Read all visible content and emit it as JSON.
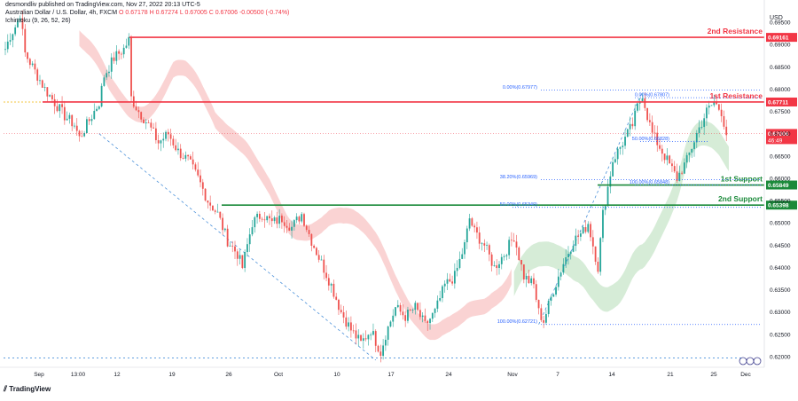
{
  "header": {
    "published": "desmondliv published on TradingView.com, Nov 27, 2022 20:13 UTC-5",
    "symbol": "Australian Dollar / U.S. Dollar, 4h, FXCM",
    "ohlc": "O 0.67178  H 0.67274  L 0.67005  C 0.67006  -0.00500 (-0.74%)",
    "indicator": "Ichimoku (9, 26, 52, 26)"
  },
  "currency": "USD",
  "footer": "TradingView",
  "colors": {
    "up": "#26a69a",
    "down": "#ef5350",
    "resistance": "#f23645",
    "support": "#1b8a3a",
    "fib": "#2962ff",
    "cloud_bear": "#f8c4c4",
    "cloud_bull": "#c8e6c9",
    "price_label": "#f23645"
  },
  "chart_data": {
    "type": "candlestick",
    "title": "Australian Dollar / U.S. Dollar, 4h, FXCM",
    "ylabel": "USD",
    "ylim": [
      0.618,
      0.698
    ],
    "y_ticks": [
      "0.69500",
      "0.69000",
      "0.68500",
      "0.68000",
      "0.67500",
      "0.67000",
      "0.66500",
      "0.66000",
      "0.65500",
      "0.65000",
      "0.64500",
      "0.64000",
      "0.63500",
      "0.63000",
      "0.62500",
      "0.62000"
    ],
    "x_ticks": [
      "Sep",
      "13:00",
      "12",
      "19",
      "26",
      "Oct",
      "10",
      "17",
      "24",
      "Nov",
      "7",
      "14",
      "21",
      "25",
      "Dec"
    ],
    "grid": false,
    "levels": [
      {
        "label": "2nd Resistance",
        "value": 0.69161,
        "price_label": "0.69161"
      },
      {
        "label": "1st Resistance",
        "value": 0.67711,
        "price_label": "0.67711"
      },
      {
        "label": "1st Support",
        "value": 0.65849,
        "price_label": "0.65849"
      },
      {
        "label": "2nd Support",
        "value": 0.65398,
        "price_label": "0.65398"
      }
    ],
    "current_price": {
      "value": 0.67006,
      "label": "0.67006",
      "countdown": "46:49"
    },
    "fib_levels": [
      {
        "label": "0.00%(0.67977)",
        "value": 0.67977
      },
      {
        "label": "38.20%(0.65969)",
        "value": 0.65969
      },
      {
        "label": "50.00%(0.65349)",
        "value": 0.65349
      },
      {
        "label": "100.00%(0.62721)",
        "value": 0.62721
      },
      {
        "label": "0.00%(0.67807)",
        "value": 0.67807
      },
      {
        "label": "50.00%(0.66828)",
        "value": 0.66828
      },
      {
        "label": "100.00%(0.65848)",
        "value": 0.65848
      }
    ],
    "waypoints": [
      [
        0,
        0.689
      ],
      [
        2,
        0.692
      ],
      [
        4,
        0.694
      ],
      [
        6,
        0.697
      ],
      [
        8,
        0.688
      ],
      [
        12,
        0.684
      ],
      [
        16,
        0.68
      ],
      [
        20,
        0.677
      ],
      [
        24,
        0.674
      ],
      [
        28,
        0.672
      ],
      [
        30,
        0.669
      ],
      [
        34,
        0.673
      ],
      [
        38,
        0.677
      ],
      [
        40,
        0.683
      ],
      [
        44,
        0.687
      ],
      [
        48,
        0.689
      ],
      [
        50,
        0.691
      ],
      [
        51,
        0.678
      ],
      [
        54,
        0.675
      ],
      [
        58,
        0.672
      ],
      [
        62,
        0.668
      ],
      [
        66,
        0.67
      ],
      [
        70,
        0.666
      ],
      [
        74,
        0.664
      ],
      [
        78,
        0.66
      ],
      [
        82,
        0.655
      ],
      [
        86,
        0.652
      ],
      [
        90,
        0.646
      ],
      [
        94,
        0.643
      ],
      [
        96,
        0.64
      ],
      [
        100,
        0.65
      ],
      [
        104,
        0.652
      ],
      [
        108,
        0.65
      ],
      [
        112,
        0.651
      ],
      [
        116,
        0.649
      ],
      [
        120,
        0.652
      ],
      [
        124,
        0.646
      ],
      [
        128,
        0.641
      ],
      [
        132,
        0.636
      ],
      [
        136,
        0.63
      ],
      [
        140,
        0.626
      ],
      [
        144,
        0.623
      ],
      [
        148,
        0.626
      ],
      [
        152,
        0.621
      ],
      [
        154,
        0.625
      ],
      [
        158,
        0.631
      ],
      [
        162,
        0.629
      ],
      [
        166,
        0.631
      ],
      [
        170,
        0.627
      ],
      [
        174,
        0.63
      ],
      [
        178,
        0.636
      ],
      [
        182,
        0.638
      ],
      [
        186,
        0.645
      ],
      [
        188,
        0.651
      ],
      [
        190,
        0.648
      ],
      [
        194,
        0.645
      ],
      [
        198,
        0.64
      ],
      [
        202,
        0.643
      ],
      [
        206,
        0.647
      ],
      [
        210,
        0.638
      ],
      [
        214,
        0.636
      ],
      [
        216,
        0.63
      ],
      [
        218,
        0.628
      ],
      [
        222,
        0.635
      ],
      [
        226,
        0.641
      ],
      [
        230,
        0.646
      ],
      [
        234,
        0.648
      ],
      [
        236,
        0.65
      ],
      [
        238,
        0.645
      ],
      [
        240,
        0.64
      ],
      [
        242,
        0.652
      ],
      [
        246,
        0.664
      ],
      [
        250,
        0.668
      ],
      [
        254,
        0.672
      ],
      [
        256,
        0.676
      ],
      [
        258,
        0.679
      ],
      [
        260,
        0.674
      ],
      [
        262,
        0.67
      ],
      [
        266,
        0.666
      ],
      [
        270,
        0.662
      ],
      [
        272,
        0.66
      ],
      [
        276,
        0.664
      ],
      [
        280,
        0.67
      ],
      [
        284,
        0.675
      ],
      [
        287,
        0.677
      ],
      [
        290,
        0.675
      ],
      [
        292,
        0.67
      ]
    ],
    "n_bars": 293
  }
}
